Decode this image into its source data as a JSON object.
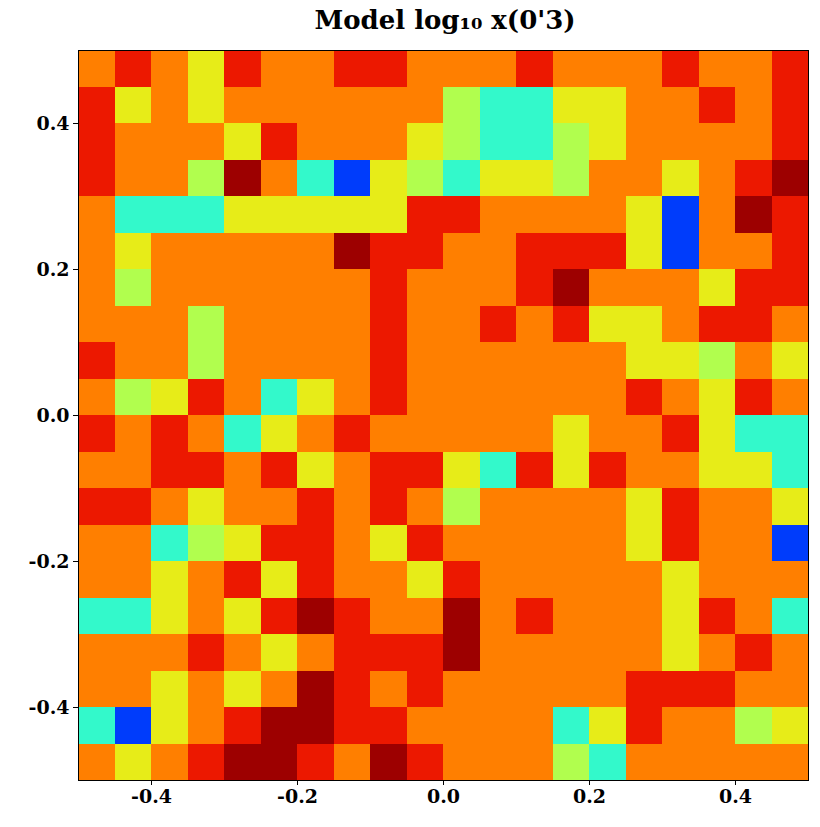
{
  "chart_data": {
    "type": "heatmap",
    "title": "Model log₁₀ x(0'3)",
    "xlim": [
      -0.5,
      0.5
    ],
    "ylim": [
      -0.5,
      0.5
    ],
    "xticks": [
      -0.4,
      -0.2,
      {
        "value": 0,
        "label": "0.0"
      },
      0.2,
      0.4
    ],
    "yticks": [
      -0.4,
      -0.2,
      {
        "value": 0,
        "label": "0.0"
      },
      0.2,
      0.4
    ],
    "color_range": [
      0,
      1
    ],
    "x_edges": [
      -0.5,
      -0.45,
      -0.4,
      -0.35,
      -0.3,
      -0.25,
      -0.2,
      -0.15,
      -0.1,
      -0.05,
      0,
      0.05,
      0.1,
      0.15,
      0.2,
      0.25,
      0.3,
      0.35,
      0.4,
      0.45,
      0.5
    ],
    "y_edges": [
      0.5,
      0.45,
      0.4,
      0.35,
      0.3,
      0.25,
      0.2,
      0.15,
      0.1,
      0.05,
      0,
      -0.05,
      -0.1,
      -0.15,
      -0.2,
      -0.25,
      -0.3,
      -0.35,
      -0.4,
      -0.45,
      -0.5
    ],
    "cells": [
      [
        0.75,
        0.87,
        0.75,
        0.62,
        0.87,
        0.75,
        0.75,
        0.87,
        0.87,
        0.75,
        0.75,
        0.75,
        0.87,
        0.75,
        0.75,
        0.75,
        0.87,
        0.75,
        0.75,
        0.87
      ],
      [
        0.87,
        0.62,
        0.75,
        0.62,
        0.75,
        0.75,
        0.75,
        0.75,
        0.75,
        0.75,
        0.55,
        0.42,
        0.42,
        0.62,
        0.62,
        0.75,
        0.75,
        0.87,
        0.75,
        0.87
      ],
      [
        0.87,
        0.75,
        0.75,
        0.75,
        0.62,
        0.87,
        0.75,
        0.75,
        0.75,
        0.62,
        0.55,
        0.42,
        0.42,
        0.55,
        0.62,
        0.75,
        0.75,
        0.75,
        0.75,
        0.87
      ],
      [
        0.87,
        0.75,
        0.75,
        0.55,
        0.97,
        0.75,
        0.42,
        0.18,
        0.62,
        0.55,
        0.42,
        0.62,
        0.62,
        0.55,
        0.75,
        0.75,
        0.62,
        0.75,
        0.87,
        0.97
      ],
      [
        0.75,
        0.42,
        0.42,
        0.42,
        0.62,
        0.62,
        0.62,
        0.62,
        0.62,
        0.87,
        0.87,
        0.75,
        0.75,
        0.75,
        0.75,
        0.62,
        0.18,
        0.75,
        0.97,
        0.87
      ],
      [
        0.75,
        0.62,
        0.75,
        0.75,
        0.75,
        0.75,
        0.75,
        0.97,
        0.87,
        0.87,
        0.75,
        0.75,
        0.87,
        0.87,
        0.87,
        0.62,
        0.18,
        0.75,
        0.75,
        0.87
      ],
      [
        0.75,
        0.55,
        0.75,
        0.75,
        0.75,
        0.75,
        0.75,
        0.75,
        0.87,
        0.75,
        0.75,
        0.75,
        0.87,
        0.97,
        0.75,
        0.75,
        0.75,
        0.62,
        0.87,
        0.87
      ],
      [
        0.75,
        0.75,
        0.75,
        0.55,
        0.75,
        0.75,
        0.75,
        0.75,
        0.87,
        0.75,
        0.75,
        0.87,
        0.75,
        0.87,
        0.62,
        0.62,
        0.75,
        0.87,
        0.87,
        0.75
      ],
      [
        0.87,
        0.75,
        0.75,
        0.55,
        0.75,
        0.75,
        0.75,
        0.75,
        0.87,
        0.75,
        0.75,
        0.75,
        0.75,
        0.75,
        0.75,
        0.62,
        0.62,
        0.55,
        0.75,
        0.62
      ],
      [
        0.75,
        0.55,
        0.62,
        0.87,
        0.75,
        0.42,
        0.62,
        0.75,
        0.87,
        0.75,
        0.75,
        0.75,
        0.75,
        0.75,
        0.75,
        0.87,
        0.75,
        0.62,
        0.87,
        0.75
      ],
      [
        0.87,
        0.75,
        0.87,
        0.75,
        0.42,
        0.62,
        0.75,
        0.87,
        0.75,
        0.75,
        0.75,
        0.75,
        0.75,
        0.62,
        0.75,
        0.75,
        0.87,
        0.62,
        0.42,
        0.42
      ],
      [
        0.75,
        0.75,
        0.87,
        0.87,
        0.75,
        0.87,
        0.62,
        0.75,
        0.87,
        0.87,
        0.62,
        0.42,
        0.87,
        0.62,
        0.87,
        0.75,
        0.75,
        0.62,
        0.62,
        0.42
      ],
      [
        0.87,
        0.87,
        0.75,
        0.62,
        0.75,
        0.75,
        0.87,
        0.75,
        0.87,
        0.75,
        0.55,
        0.75,
        0.75,
        0.75,
        0.75,
        0.62,
        0.87,
        0.75,
        0.75,
        0.62
      ],
      [
        0.75,
        0.75,
        0.42,
        0.55,
        0.62,
        0.87,
        0.87,
        0.75,
        0.62,
        0.87,
        0.75,
        0.75,
        0.75,
        0.75,
        0.75,
        0.62,
        0.87,
        0.75,
        0.75,
        0.18
      ],
      [
        0.75,
        0.75,
        0.62,
        0.75,
        0.87,
        0.62,
        0.87,
        0.75,
        0.75,
        0.62,
        0.87,
        0.75,
        0.75,
        0.75,
        0.75,
        0.75,
        0.62,
        0.75,
        0.75,
        0.75
      ],
      [
        0.42,
        0.42,
        0.62,
        0.75,
        0.62,
        0.87,
        0.97,
        0.87,
        0.75,
        0.75,
        0.97,
        0.75,
        0.87,
        0.75,
        0.75,
        0.75,
        0.62,
        0.87,
        0.75,
        0.42
      ],
      [
        0.75,
        0.75,
        0.75,
        0.87,
        0.75,
        0.62,
        0.75,
        0.87,
        0.87,
        0.87,
        0.97,
        0.75,
        0.75,
        0.75,
        0.75,
        0.75,
        0.62,
        0.75,
        0.87,
        0.75
      ],
      [
        0.75,
        0.75,
        0.62,
        0.75,
        0.62,
        0.75,
        0.97,
        0.87,
        0.75,
        0.87,
        0.75,
        0.75,
        0.75,
        0.75,
        0.75,
        0.87,
        0.87,
        0.87,
        0.75,
        0.75
      ],
      [
        0.42,
        0.18,
        0.62,
        0.75,
        0.87,
        0.97,
        0.97,
        0.87,
        0.87,
        0.75,
        0.75,
        0.75,
        0.75,
        0.42,
        0.62,
        0.87,
        0.75,
        0.75,
        0.55,
        0.62
      ],
      [
        0.75,
        0.62,
        0.75,
        0.87,
        0.97,
        0.97,
        0.87,
        0.75,
        0.97,
        0.87,
        0.75,
        0.75,
        0.75,
        0.55,
        0.42,
        0.75,
        0.75,
        0.75,
        0.75,
        0.75
      ]
    ]
  }
}
